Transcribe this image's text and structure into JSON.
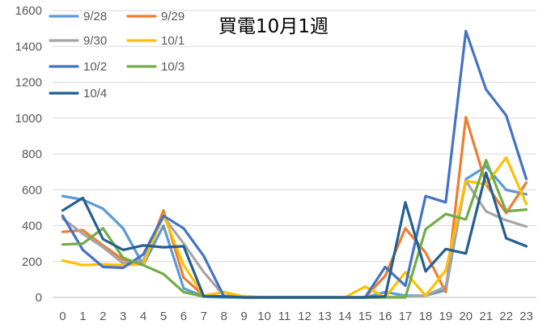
{
  "chart_data": {
    "type": "line",
    "title": "買電10月1週",
    "xlabel": "",
    "ylabel": "",
    "x": [
      0,
      1,
      2,
      3,
      4,
      5,
      6,
      7,
      8,
      9,
      10,
      11,
      12,
      13,
      14,
      15,
      16,
      17,
      18,
      19,
      20,
      21,
      22,
      23
    ],
    "ylim": [
      0,
      1600
    ],
    "yticks": [
      0,
      200,
      400,
      600,
      800,
      1000,
      1200,
      1400,
      1600
    ],
    "grid": true,
    "legend_position": "top-left",
    "series": [
      {
        "name": "9/28",
        "color": "#5B9BD5",
        "values": [
          565,
          545,
          495,
          385,
          180,
          400,
          50,
          5,
          0,
          0,
          0,
          0,
          0,
          0,
          0,
          0,
          30,
          10,
          10,
          40,
          660,
          730,
          600,
          575
        ]
      },
      {
        "name": "9/29",
        "color": "#ED7D31",
        "values": [
          365,
          375,
          290,
          210,
          185,
          485,
          110,
          10,
          5,
          0,
          0,
          0,
          0,
          0,
          0,
          0,
          120,
          385,
          250,
          30,
          1005,
          630,
          470,
          640
        ]
      },
      {
        "name": "9/30",
        "color": "#A5A5A5",
        "values": [
          440,
          355,
          280,
          190,
          205,
          450,
          300,
          140,
          10,
          5,
          0,
          0,
          0,
          0,
          0,
          0,
          0,
          5,
          10,
          60,
          650,
          480,
          430,
          395
        ]
      },
      {
        "name": "10/1",
        "color": "#FFC000",
        "values": [
          205,
          180,
          185,
          180,
          185,
          460,
          180,
          10,
          30,
          5,
          0,
          0,
          0,
          0,
          0,
          60,
          0,
          140,
          10,
          150,
          650,
          630,
          780,
          520
        ]
      },
      {
        "name": "10/2",
        "color": "#4472C4",
        "values": [
          455,
          265,
          170,
          165,
          240,
          455,
          385,
          230,
          5,
          0,
          0,
          0,
          0,
          0,
          0,
          0,
          170,
          65,
          565,
          530,
          1485,
          1160,
          1015,
          660
        ]
      },
      {
        "name": "10/3",
        "color": "#70AD47",
        "values": [
          295,
          300,
          385,
          220,
          180,
          130,
          30,
          5,
          5,
          0,
          0,
          0,
          0,
          0,
          0,
          0,
          0,
          0,
          380,
          465,
          435,
          765,
          480,
          490
        ]
      },
      {
        "name": "10/4",
        "color": "#255E91",
        "values": [
          485,
          555,
          325,
          265,
          290,
          280,
          285,
          5,
          5,
          0,
          0,
          0,
          0,
          0,
          0,
          0,
          5,
          530,
          145,
          270,
          245,
          695,
          330,
          285
        ]
      }
    ]
  }
}
